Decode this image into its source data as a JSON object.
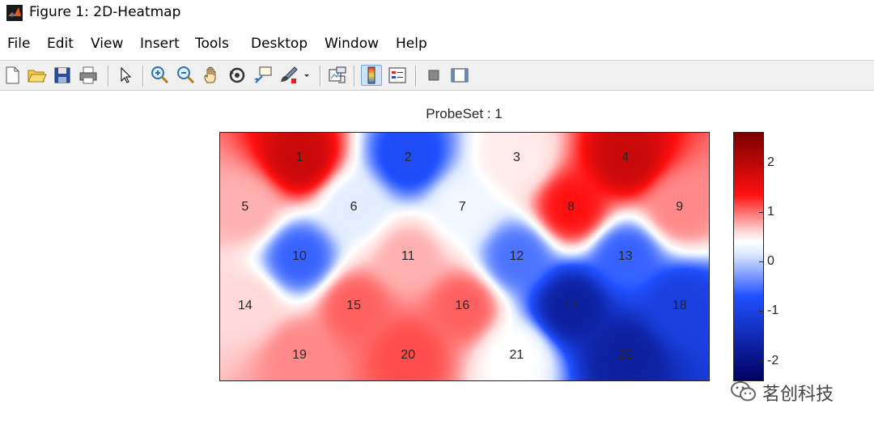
{
  "window": {
    "title": "Figure 1: 2D-Heatmap"
  },
  "menu": [
    "File",
    "Edit",
    "View",
    "Insert",
    "Tools",
    "Desktop",
    "Window",
    "Help"
  ],
  "toolbar": {
    "buttons": [
      "new-file-icon",
      "open-folder-icon",
      "save-icon",
      "print-icon",
      "pointer-icon",
      "zoom-in-icon",
      "zoom-out-icon",
      "pan-hand-icon",
      "rotate-3d-icon",
      "data-cursor-icon",
      "brush-icon",
      "link-plot-icon",
      "colorbar-icon",
      "legend-icon",
      "hide-plot-tools-icon",
      "show-plot-tools-icon"
    ],
    "pressed": "colorbar-icon"
  },
  "chart_data": {
    "type": "heatmap",
    "title": "ProbeSet : 1",
    "grid_cols": 5,
    "grid_rows": 5,
    "probe_labels": [
      "1",
      "2",
      "3",
      "4",
      "5",
      "6",
      "7",
      "8",
      "9",
      "10",
      "11",
      "12",
      "13",
      "14",
      "15",
      "16",
      "17",
      "18",
      "19",
      "20",
      "21",
      "22"
    ],
    "values": [
      2.0,
      -1.0,
      0.4,
      2.0,
      0.8,
      0.0,
      0.1,
      1.6,
      1.0,
      -0.8,
      0.8,
      -0.7,
      -0.8,
      0.6,
      1.2,
      1.2,
      -1.8,
      -1.2,
      1.0,
      1.3,
      0.2,
      -1.8
    ],
    "colorbar": {
      "ticks": [
        2,
        1,
        0,
        -1,
        -2
      ],
      "tick_labels": [
        "2",
        "1",
        "0",
        "-1",
        "-2"
      ],
      "range": [
        -2.4,
        2.6
      ]
    },
    "colors": {
      "high": "#7a0000",
      "mid": "#ffffff",
      "low": "#000060"
    }
  },
  "watermark": {
    "text": "茗创科技"
  }
}
